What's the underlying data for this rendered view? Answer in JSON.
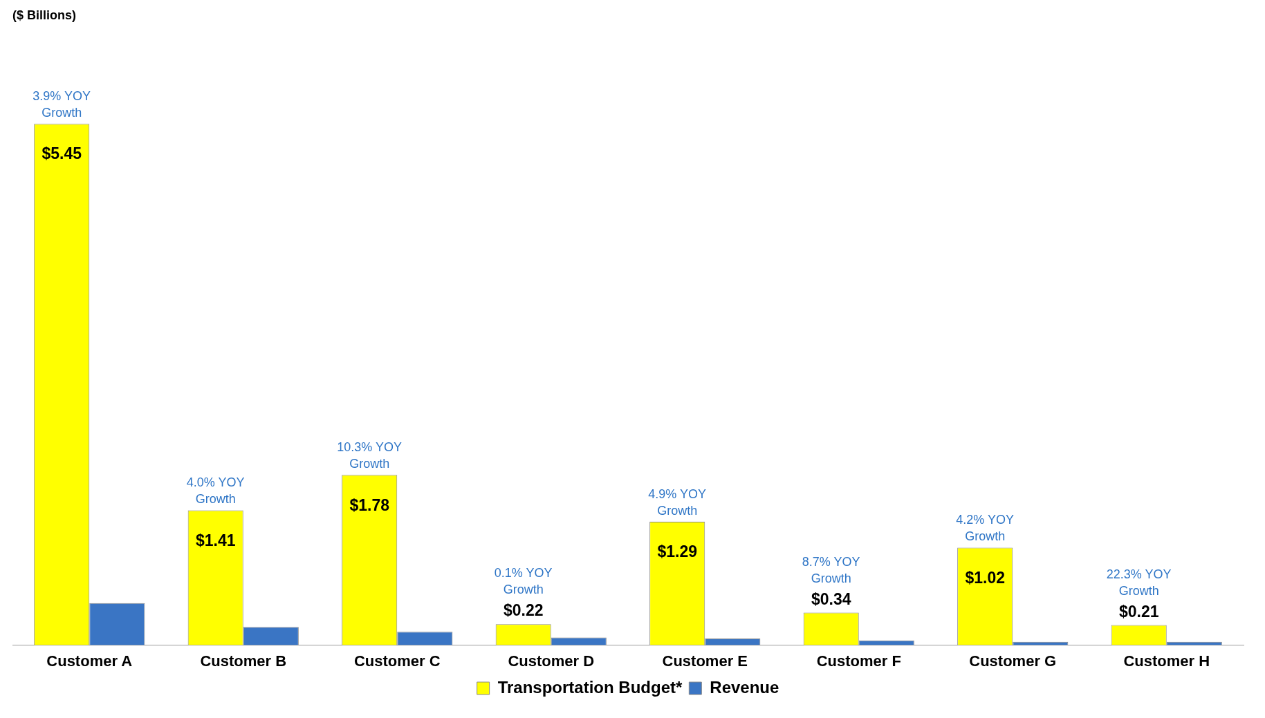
{
  "chart_data": {
    "type": "bar",
    "categories": [
      "Customer A",
      "Customer B",
      "Customer C",
      "Customer D",
      "Customer E",
      "Customer F",
      "Customer G",
      "Customer H"
    ],
    "series": [
      {
        "name": "Transportation Budget*",
        "color": "#ffff00",
        "values": [
          5.45,
          1.41,
          1.78,
          0.22,
          1.29,
          0.34,
          1.02,
          0.21
        ],
        "value_labels": [
          "$5.45",
          "$1.41",
          "$1.78",
          "$0.22",
          "$1.29",
          "$0.34",
          "$1.02",
          "$0.21"
        ]
      },
      {
        "name": "Revenue",
        "color": "#3a75c4",
        "values": [
          0.44,
          0.19,
          0.14,
          0.08,
          0.07,
          0.05,
          0.035,
          0.035
        ]
      }
    ],
    "annotations": [
      "($ Billions)",
      {
        "text": "3.9% YOY Growth",
        "x": "Customer A",
        "y": 5.45
      },
      {
        "text": "4.0% YOY Growth",
        "x": "Customer B",
        "y": 1.41
      },
      {
        "text": "10.3% YOY Growth",
        "x": "Customer C",
        "y": 1.78
      },
      {
        "text": "0.1% YOY Growth",
        "x": "Customer D",
        "y": 0.22
      },
      {
        "text": "4.9% YOY Growth",
        "x": "Customer E",
        "y": 1.29
      },
      {
        "text": "8.7% YOY Growth",
        "x": "Customer F",
        "y": 0.34
      },
      {
        "text": "4.2% YOY Growth",
        "x": "Customer G",
        "y": 1.02
      },
      {
        "text": "22.3% YOY Growth",
        "x": "Customer H",
        "y": 0.21
      }
    ],
    "legend": "bottom",
    "grid": false
  }
}
